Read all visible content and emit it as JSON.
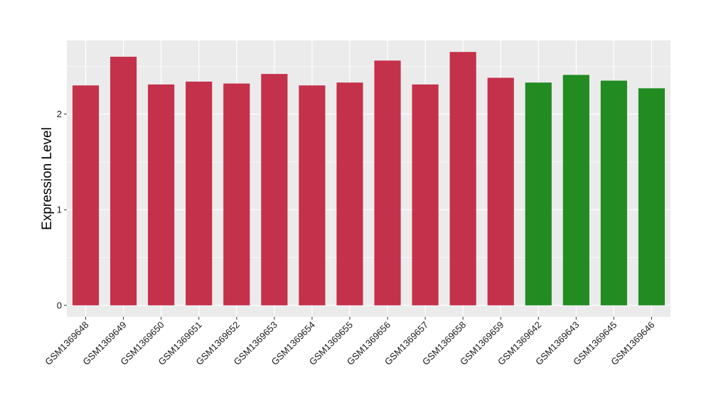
{
  "chart_data": {
    "type": "bar",
    "title": "",
    "xlabel": "",
    "ylabel": "Expression Level",
    "ylim": [
      -0.12,
      2.77
    ],
    "yticks": [
      0,
      1,
      2
    ],
    "grid": true,
    "legend": "none",
    "categories": [
      "GSM1369648",
      "GSM1369649",
      "GSM1369650",
      "GSM1369651",
      "GSM1369652",
      "GSM1369653",
      "GSM1369654",
      "GSM1369655",
      "GSM1369656",
      "GSM1369657",
      "GSM1369658",
      "GSM1369659",
      "GSM1369642",
      "GSM1369643",
      "GSM1369645",
      "GSM1369646"
    ],
    "values": [
      2.3,
      2.6,
      2.31,
      2.34,
      2.32,
      2.42,
      2.3,
      2.33,
      2.56,
      2.31,
      2.65,
      2.38,
      2.33,
      2.41,
      2.35,
      2.27
    ],
    "groups": [
      "a",
      "a",
      "a",
      "a",
      "a",
      "a",
      "a",
      "a",
      "a",
      "a",
      "a",
      "a",
      "b",
      "b",
      "b",
      "b"
    ],
    "colors": {
      "a": "#C4314B",
      "b": "#228B22"
    },
    "panel_bg": "#EBEBEB",
    "grid_color": "#FFFFFF"
  }
}
